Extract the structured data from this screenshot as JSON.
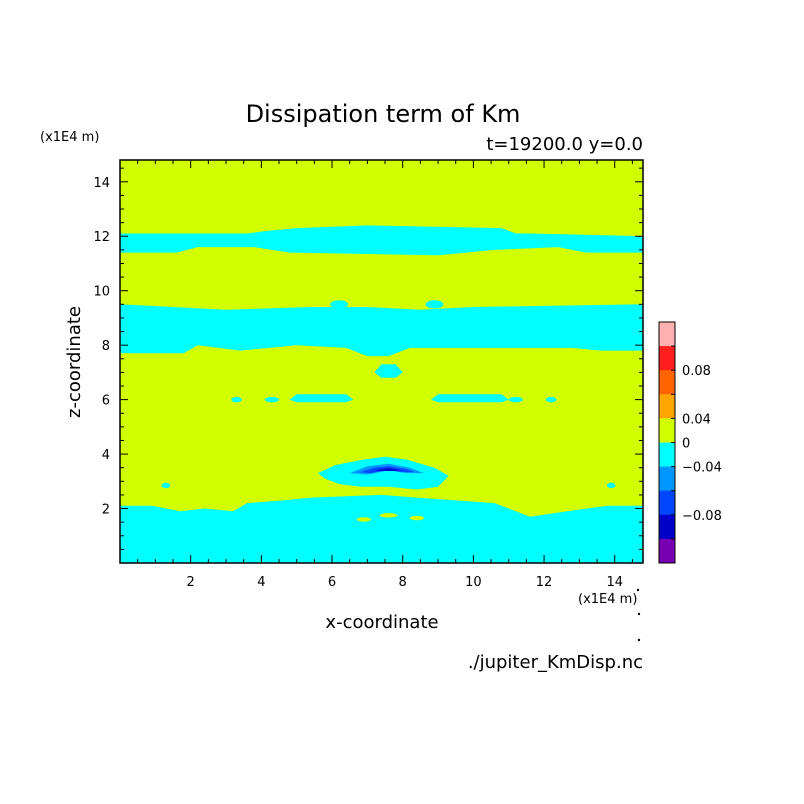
{
  "chart_data": {
    "type": "heatmap",
    "title": "Dissipation term of Km",
    "subtitle": "t=19200.0 y=0.0",
    "xlabel": "x-coordinate",
    "ylabel": "z-coordinate",
    "x_unit": "(x1E4 m)",
    "y_unit": "(x1E4 m)",
    "xlim": [
      0,
      14.8
    ],
    "ylim": [
      0,
      14.8
    ],
    "x_ticks": [
      2,
      4,
      6,
      8,
      10,
      12,
      14
    ],
    "y_ticks": [
      2,
      4,
      6,
      8,
      10,
      12,
      14
    ],
    "x_tick_labels": [
      "2",
      "4",
      "6",
      "8",
      "10",
      "12",
      "14"
    ],
    "y_tick_labels": [
      "2",
      "4",
      "6",
      "8",
      "10",
      "12",
      "14"
    ],
    "background_level": "0 to 0.02",
    "regions": [
      {
        "level": "-0.02 to 0",
        "polygon": [
          [
            0,
            0
          ],
          [
            14.8,
            0
          ],
          [
            14.8,
            2.1
          ],
          [
            13.8,
            2.1
          ],
          [
            13.2,
            2.0
          ],
          [
            12.4,
            1.85
          ],
          [
            11.6,
            1.7
          ],
          [
            10.6,
            2.2
          ],
          [
            8.4,
            2.4
          ],
          [
            7.4,
            2.5
          ],
          [
            5.4,
            2.4
          ],
          [
            4.6,
            2.3
          ],
          [
            3.6,
            2.2
          ],
          [
            3.2,
            1.9
          ],
          [
            2.4,
            2.0
          ],
          [
            1.7,
            1.9
          ],
          [
            0.9,
            2.1
          ],
          [
            0,
            2.1
          ]
        ]
      },
      {
        "level": "-0.02 to 0",
        "polygon": [
          [
            0,
            7.7
          ],
          [
            1.8,
            7.7
          ],
          [
            2.2,
            8.0
          ],
          [
            3.4,
            7.8
          ],
          [
            5.0,
            8.0
          ],
          [
            6.4,
            7.9
          ],
          [
            7.0,
            7.6
          ],
          [
            7.6,
            7.6
          ],
          [
            8.2,
            7.9
          ],
          [
            9.6,
            7.9
          ],
          [
            11.8,
            7.9
          ],
          [
            12.8,
            7.9
          ],
          [
            13.6,
            7.8
          ],
          [
            14.8,
            7.8
          ],
          [
            14.8,
            9.5
          ],
          [
            10.0,
            9.4
          ],
          [
            8.5,
            9.3
          ],
          [
            7.0,
            9.4
          ],
          [
            5.4,
            9.4
          ],
          [
            3.0,
            9.3
          ],
          [
            0,
            9.5
          ]
        ]
      },
      {
        "level": "-0.02 to 0",
        "polygon": [
          [
            0,
            11.4
          ],
          [
            1.6,
            11.4
          ],
          [
            2.2,
            11.6
          ],
          [
            3.8,
            11.6
          ],
          [
            4.8,
            11.4
          ],
          [
            9.0,
            11.3
          ],
          [
            10.6,
            11.5
          ],
          [
            12.4,
            11.6
          ],
          [
            13.2,
            11.4
          ],
          [
            14.8,
            11.4
          ],
          [
            14.8,
            12.0
          ],
          [
            11.6,
            12.1
          ],
          [
            11.2,
            12.1
          ],
          [
            10.8,
            12.3
          ],
          [
            7.0,
            12.4
          ],
          [
            5.0,
            12.3
          ],
          [
            4.2,
            12.2
          ],
          [
            3.6,
            12.1
          ],
          [
            0,
            12.1
          ]
        ]
      },
      {
        "level": "-0.02 to 0",
        "polygon": [
          [
            4.8,
            6.0
          ],
          [
            5.0,
            6.2
          ],
          [
            6.4,
            6.2
          ],
          [
            6.6,
            6.0
          ],
          [
            6.4,
            5.9
          ],
          [
            5.0,
            5.9
          ]
        ]
      },
      {
        "level": "-0.02 to 0",
        "polygon": [
          [
            8.8,
            6.0
          ],
          [
            9.0,
            6.2
          ],
          [
            10.8,
            6.2
          ],
          [
            11.0,
            6.0
          ],
          [
            10.8,
            5.9
          ],
          [
            9.0,
            5.9
          ]
        ]
      },
      {
        "level": "-0.02 to 0",
        "polygon": [
          [
            7.2,
            7.0
          ],
          [
            7.4,
            7.3
          ],
          [
            7.8,
            7.3
          ],
          [
            8.0,
            7.0
          ],
          [
            7.8,
            6.8
          ],
          [
            7.4,
            6.8
          ]
        ]
      },
      {
        "level": "-0.02 to 0",
        "polygon": [
          [
            5.6,
            3.3
          ],
          [
            6.1,
            3.6
          ],
          [
            6.9,
            3.8
          ],
          [
            7.5,
            3.9
          ],
          [
            8.1,
            3.8
          ],
          [
            8.9,
            3.5
          ],
          [
            9.3,
            3.2
          ],
          [
            9.0,
            2.8
          ],
          [
            8.4,
            2.7
          ],
          [
            7.6,
            2.8
          ],
          [
            6.8,
            2.8
          ],
          [
            6.2,
            2.9
          ],
          [
            5.8,
            3.1
          ]
        ]
      },
      {
        "level": "-0.04 to -0.02",
        "polygon": [
          [
            6.5,
            3.3
          ],
          [
            7.0,
            3.55
          ],
          [
            7.6,
            3.65
          ],
          [
            8.2,
            3.5
          ],
          [
            8.6,
            3.3
          ],
          [
            8.1,
            3.3
          ],
          [
            7.6,
            3.4
          ],
          [
            7.0,
            3.25
          ]
        ]
      },
      {
        "level": "-0.06 to -0.04",
        "polygon": [
          [
            6.8,
            3.33
          ],
          [
            7.2,
            3.5
          ],
          [
            7.6,
            3.56
          ],
          [
            8.1,
            3.45
          ],
          [
            8.35,
            3.33
          ],
          [
            7.9,
            3.35
          ],
          [
            7.6,
            3.42
          ],
          [
            7.1,
            3.3
          ]
        ]
      },
      {
        "level": "-0.08 to -0.06",
        "polygon": [
          [
            7.2,
            3.4
          ],
          [
            7.6,
            3.48
          ],
          [
            8.0,
            3.4
          ],
          [
            7.6,
            3.38
          ]
        ]
      },
      {
        "level": "-0.02 to 0",
        "ellipse": [
          3.3,
          6.0,
          0.15,
          0.1
        ]
      },
      {
        "level": "-0.02 to 0",
        "ellipse": [
          4.3,
          6.0,
          0.2,
          0.1
        ]
      },
      {
        "level": "-0.02 to 0",
        "ellipse": [
          11.2,
          6.0,
          0.2,
          0.1
        ]
      },
      {
        "level": "-0.02 to 0",
        "ellipse": [
          12.2,
          6.0,
          0.15,
          0.1
        ]
      },
      {
        "level": "-0.02 to 0",
        "ellipse": [
          1.3,
          2.85,
          0.12,
          0.1
        ]
      },
      {
        "level": "-0.02 to 0",
        "ellipse": [
          13.9,
          2.85,
          0.12,
          0.1
        ]
      },
      {
        "level": "-0.02 to 0",
        "ellipse": [
          6.2,
          9.5,
          0.25,
          0.15
        ]
      },
      {
        "level": "-0.02 to 0",
        "ellipse": [
          8.9,
          9.5,
          0.25,
          0.15
        ]
      },
      {
        "level": "0 to 0.02",
        "ellipse": [
          6.9,
          1.6,
          0.2,
          0.08
        ]
      },
      {
        "level": "0 to 0.02",
        "ellipse": [
          7.6,
          1.75,
          0.25,
          0.08
        ]
      },
      {
        "level": "0 to 0.02",
        "ellipse": [
          8.4,
          1.65,
          0.2,
          0.08
        ]
      }
    ],
    "colorbar": {
      "levels": [
        {
          "range": "0.08 to 0.1",
          "color": "#ffb0b0"
        },
        {
          "range": "0.06 to 0.08",
          "color": "#ff1e1e"
        },
        {
          "range": "0.04 to 0.06",
          "color": "#ff6400"
        },
        {
          "range": "0.02 to 0.04",
          "color": "#ffa500"
        },
        {
          "range": "0 to 0.02",
          "color": "#d2ff00"
        },
        {
          "range": "-0.02 to 0",
          "color": "#00ffff"
        },
        {
          "range": "-0.04 to -0.02",
          "color": "#0096ff"
        },
        {
          "range": "-0.06 to -0.04",
          "color": "#0046ff"
        },
        {
          "range": "-0.08 to -0.06",
          "color": "#0000c8"
        },
        {
          "range": "-0.1 to -0.08",
          "color": "#7800b4"
        }
      ],
      "tick_labels": [
        "0.08",
        "0.04",
        "0",
        "−0.04",
        "−0.08"
      ]
    },
    "legend": "right"
  },
  "filename": "./jupiter_KmDisp.nc"
}
